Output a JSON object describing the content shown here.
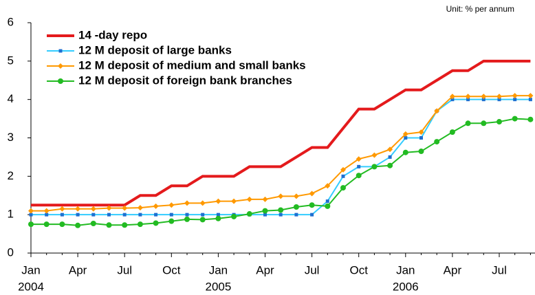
{
  "chart_data": {
    "type": "line",
    "unit": "Unit: % per annum",
    "categories": [
      "Jan",
      null,
      null,
      "Apr",
      null,
      null,
      "Jul",
      null,
      null,
      "Oct",
      null,
      null,
      "Jan",
      null,
      null,
      "Apr",
      null,
      null,
      "Jul",
      null,
      null,
      "Oct",
      null,
      null,
      "Jan",
      null,
      null,
      "Apr",
      null,
      null,
      "Jul",
      null,
      null
    ],
    "years": [
      "2004",
      "2005",
      "2006"
    ],
    "ylim": [
      0,
      6
    ],
    "yticks": [
      0,
      1,
      2,
      3,
      4,
      5,
      6
    ],
    "grid": false,
    "series": [
      {
        "name": "14 -day repo",
        "color": "#e41a1c",
        "marker": "none",
        "values": [
          1.25,
          1.25,
          1.25,
          1.25,
          1.25,
          1.25,
          1.25,
          1.5,
          1.5,
          1.75,
          1.75,
          2.0,
          2.0,
          2.0,
          2.25,
          2.25,
          2.25,
          2.5,
          2.75,
          2.75,
          3.25,
          3.75,
          3.75,
          4.0,
          4.25,
          4.25,
          4.5,
          4.75,
          4.75,
          5.0,
          5.0,
          5.0,
          5.0
        ]
      },
      {
        "name": "12 M deposit of large banks",
        "color": "#33ccff",
        "marker": "square",
        "values": [
          1.0,
          1.0,
          1.0,
          1.0,
          1.0,
          1.0,
          1.0,
          1.0,
          1.0,
          1.0,
          1.0,
          1.0,
          1.0,
          1.0,
          1.0,
          1.0,
          1.0,
          1.0,
          1.0,
          1.35,
          2.0,
          2.25,
          2.25,
          2.5,
          3.0,
          3.0,
          3.7,
          4.0,
          4.0,
          4.0,
          4.0,
          4.0,
          4.0
        ]
      },
      {
        "name": "12 M deposit of medium and small banks",
        "color": "#ff9900",
        "marker": "diamond",
        "values": [
          1.1,
          1.1,
          1.15,
          1.15,
          1.15,
          1.17,
          1.17,
          1.18,
          1.22,
          1.25,
          1.3,
          1.3,
          1.35,
          1.35,
          1.4,
          1.4,
          1.48,
          1.48,
          1.55,
          1.75,
          2.17,
          2.45,
          2.55,
          2.7,
          3.1,
          3.15,
          3.7,
          4.08,
          4.08,
          4.08,
          4.08,
          4.1,
          4.1
        ]
      },
      {
        "name": "12 M deposit of foreign bank branches",
        "color": "#22bb22",
        "marker": "circle",
        "values": [
          0.75,
          0.75,
          0.75,
          0.72,
          0.77,
          0.73,
          0.73,
          0.75,
          0.78,
          0.83,
          0.88,
          0.87,
          0.9,
          0.95,
          1.02,
          1.1,
          1.12,
          1.2,
          1.25,
          1.22,
          1.7,
          2.02,
          2.25,
          2.28,
          2.62,
          2.65,
          2.9,
          3.15,
          3.38,
          3.38,
          3.42,
          3.5,
          3.48
        ]
      }
    ]
  }
}
